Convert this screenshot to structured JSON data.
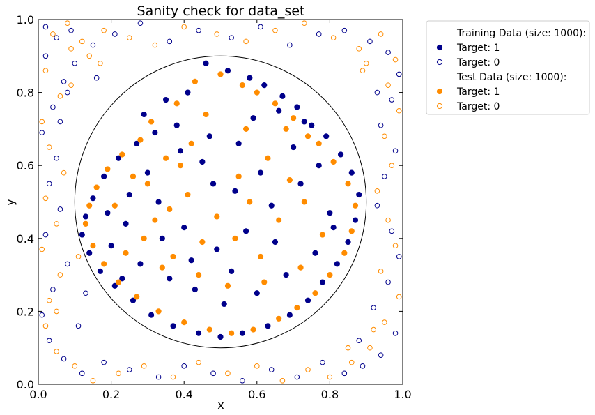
{
  "chart_data": {
    "type": "scatter",
    "title": "Sanity check for data_set",
    "xlabel": "x",
    "ylabel": "y",
    "xlim": [
      0.0,
      1.0
    ],
    "ylim": [
      0.0,
      1.0
    ],
    "xticks": [
      "0.0",
      "0.2",
      "0.4",
      "0.6",
      "0.8",
      "1.0"
    ],
    "yticks": [
      "0.0",
      "0.2",
      "0.4",
      "0.6",
      "0.8",
      "1.0"
    ],
    "grid": false,
    "legend_position": "outside-right",
    "decision_circle": {
      "center": [
        0.5,
        0.5
      ],
      "radius": 0.4,
      "color": "#000000"
    },
    "legend": [
      {
        "label": "Training Data (size: 1000):",
        "kind": "header"
      },
      {
        "label": "Target: 1",
        "kind": "marker",
        "color": "#00008b",
        "filled": true
      },
      {
        "label": "Target: 0",
        "kind": "marker",
        "color": "#00008b",
        "filled": false
      },
      {
        "label": "Test Data (size: 1000):",
        "kind": "header"
      },
      {
        "label": "Target: 1",
        "kind": "marker",
        "color": "#ff8c00",
        "filled": true
      },
      {
        "label": "Target: 0",
        "kind": "marker",
        "color": "#ff8c00",
        "filled": false
      }
    ],
    "series": [
      {
        "name": "Training Data Target: 1",
        "color": "#00008b",
        "filled": true,
        "x": [
          0.46,
          0.52,
          0.58,
          0.62,
          0.41,
          0.35,
          0.29,
          0.67,
          0.71,
          0.75,
          0.32,
          0.27,
          0.22,
          0.18,
          0.15,
          0.13,
          0.12,
          0.14,
          0.17,
          0.21,
          0.26,
          0.31,
          0.37,
          0.44,
          0.5,
          0.56,
          0.63,
          0.69,
          0.74,
          0.78,
          0.82,
          0.85,
          0.87,
          0.88,
          0.86,
          0.83,
          0.79,
          0.73,
          0.66,
          0.59,
          0.39,
          0.45,
          0.55,
          0.61,
          0.48,
          0.33,
          0.24,
          0.2,
          0.28,
          0.36,
          0.43,
          0.51,
          0.6,
          0.68,
          0.76,
          0.8,
          0.72,
          0.64,
          0.57,
          0.49,
          0.4,
          0.3,
          0.25,
          0.19,
          0.23,
          0.34,
          0.42,
          0.53,
          0.65,
          0.77,
          0.81,
          0.7,
          0.54,
          0.38,
          0.47
        ],
        "y": [
          0.88,
          0.86,
          0.84,
          0.82,
          0.8,
          0.78,
          0.74,
          0.79,
          0.76,
          0.71,
          0.69,
          0.66,
          0.62,
          0.57,
          0.51,
          0.46,
          0.41,
          0.36,
          0.31,
          0.27,
          0.23,
          0.19,
          0.16,
          0.14,
          0.13,
          0.14,
          0.16,
          0.19,
          0.23,
          0.28,
          0.33,
          0.39,
          0.45,
          0.52,
          0.58,
          0.63,
          0.68,
          0.72,
          0.75,
          0.73,
          0.64,
          0.61,
          0.66,
          0.58,
          0.55,
          0.5,
          0.44,
          0.38,
          0.33,
          0.29,
          0.26,
          0.22,
          0.25,
          0.3,
          0.36,
          0.47,
          0.55,
          0.49,
          0.42,
          0.37,
          0.43,
          0.58,
          0.52,
          0.47,
          0.29,
          0.4,
          0.34,
          0.31,
          0.39,
          0.6,
          0.43,
          0.65,
          0.53,
          0.71,
          0.68
        ]
      },
      {
        "name": "Training Data Target: 0",
        "color": "#00008b",
        "filled": false,
        "x": [
          0.02,
          0.05,
          0.09,
          0.15,
          0.21,
          0.28,
          0.36,
          0.44,
          0.53,
          0.61,
          0.69,
          0.77,
          0.84,
          0.91,
          0.96,
          0.99,
          0.97,
          0.94,
          0.98,
          0.95,
          0.93,
          0.97,
          0.99,
          0.96,
          0.92,
          0.98,
          0.94,
          0.89,
          0.84,
          0.78,
          0.71,
          0.64,
          0.56,
          0.48,
          0.4,
          0.33,
          0.25,
          0.18,
          0.12,
          0.07,
          0.03,
          0.01,
          0.04,
          0.08,
          0.02,
          0.06,
          0.03,
          0.05,
          0.01,
          0.04,
          0.07,
          0.02,
          0.1,
          0.16,
          0.08,
          0.93,
          0.88,
          0.11,
          0.06,
          0.13
        ],
        "y": [
          0.98,
          0.95,
          0.97,
          0.93,
          0.96,
          0.99,
          0.94,
          0.97,
          0.95,
          0.98,
          0.93,
          0.96,
          0.97,
          0.94,
          0.91,
          0.85,
          0.78,
          0.71,
          0.64,
          0.57,
          0.49,
          0.42,
          0.35,
          0.28,
          0.21,
          0.14,
          0.08,
          0.05,
          0.03,
          0.06,
          0.02,
          0.04,
          0.01,
          0.03,
          0.05,
          0.02,
          0.04,
          0.06,
          0.03,
          0.07,
          0.12,
          0.19,
          0.26,
          0.33,
          0.41,
          0.48,
          0.55,
          0.62,
          0.69,
          0.76,
          0.83,
          0.9,
          0.88,
          0.84,
          0.8,
          0.8,
          0.12,
          0.16,
          0.72,
          0.25
        ]
      },
      {
        "name": "Test Data Target: 1",
        "color": "#ff8c00",
        "filled": true,
        "x": [
          0.5,
          0.56,
          0.6,
          0.43,
          0.38,
          0.31,
          0.65,
          0.7,
          0.74,
          0.28,
          0.23,
          0.19,
          0.16,
          0.14,
          0.13,
          0.15,
          0.18,
          0.22,
          0.27,
          0.33,
          0.4,
          0.47,
          0.53,
          0.59,
          0.66,
          0.71,
          0.76,
          0.8,
          0.84,
          0.86,
          0.87,
          0.85,
          0.81,
          0.77,
          0.68,
          0.57,
          0.46,
          0.35,
          0.26,
          0.21,
          0.29,
          0.37,
          0.44,
          0.52,
          0.62,
          0.72,
          0.78,
          0.66,
          0.58,
          0.49,
          0.41,
          0.32,
          0.24,
          0.3,
          0.39,
          0.55,
          0.63,
          0.73,
          0.45,
          0.34,
          0.54,
          0.69,
          0.42,
          0.61,
          0.36
        ],
        "y": [
          0.85,
          0.82,
          0.8,
          0.83,
          0.77,
          0.72,
          0.77,
          0.73,
          0.68,
          0.67,
          0.63,
          0.59,
          0.54,
          0.49,
          0.44,
          0.38,
          0.33,
          0.28,
          0.24,
          0.2,
          0.17,
          0.15,
          0.14,
          0.15,
          0.18,
          0.21,
          0.25,
          0.3,
          0.36,
          0.42,
          0.49,
          0.55,
          0.61,
          0.66,
          0.7,
          0.7,
          0.74,
          0.62,
          0.57,
          0.49,
          0.4,
          0.35,
          0.3,
          0.27,
          0.28,
          0.32,
          0.41,
          0.45,
          0.5,
          0.46,
          0.52,
          0.45,
          0.36,
          0.55,
          0.6,
          0.57,
          0.62,
          0.5,
          0.39,
          0.32,
          0.4,
          0.56,
          0.66,
          0.35,
          0.48
        ]
      },
      {
        "name": "Test Data Target: 0",
        "color": "#ff8c00",
        "filled": false,
        "x": [
          0.04,
          0.08,
          0.12,
          0.18,
          0.25,
          0.32,
          0.4,
          0.49,
          0.57,
          0.65,
          0.73,
          0.81,
          0.88,
          0.94,
          0.98,
          0.96,
          0.99,
          0.95,
          0.97,
          0.93,
          0.96,
          0.98,
          0.94,
          0.99,
          0.95,
          0.91,
          0.86,
          0.8,
          0.74,
          0.67,
          0.6,
          0.52,
          0.44,
          0.37,
          0.29,
          0.22,
          0.15,
          0.1,
          0.05,
          0.02,
          0.03,
          0.06,
          0.01,
          0.05,
          0.02,
          0.07,
          0.03,
          0.01,
          0.06,
          0.02,
          0.09,
          0.14,
          0.9,
          0.92,
          0.09,
          0.05,
          0.11,
          0.17,
          0.85,
          0.89
        ],
        "y": [
          0.96,
          0.99,
          0.94,
          0.97,
          0.95,
          0.93,
          0.98,
          0.96,
          0.94,
          0.97,
          0.99,
          0.95,
          0.92,
          0.96,
          0.89,
          0.82,
          0.75,
          0.68,
          0.6,
          0.53,
          0.45,
          0.38,
          0.31,
          0.24,
          0.17,
          0.1,
          0.06,
          0.02,
          0.04,
          0.01,
          0.05,
          0.03,
          0.06,
          0.02,
          0.05,
          0.03,
          0.01,
          0.05,
          0.09,
          0.16,
          0.23,
          0.3,
          0.37,
          0.44,
          0.51,
          0.58,
          0.65,
          0.72,
          0.79,
          0.86,
          0.92,
          0.9,
          0.88,
          0.15,
          0.82,
          0.2,
          0.35,
          0.88,
          0.1,
          0.86
        ]
      }
    ]
  }
}
